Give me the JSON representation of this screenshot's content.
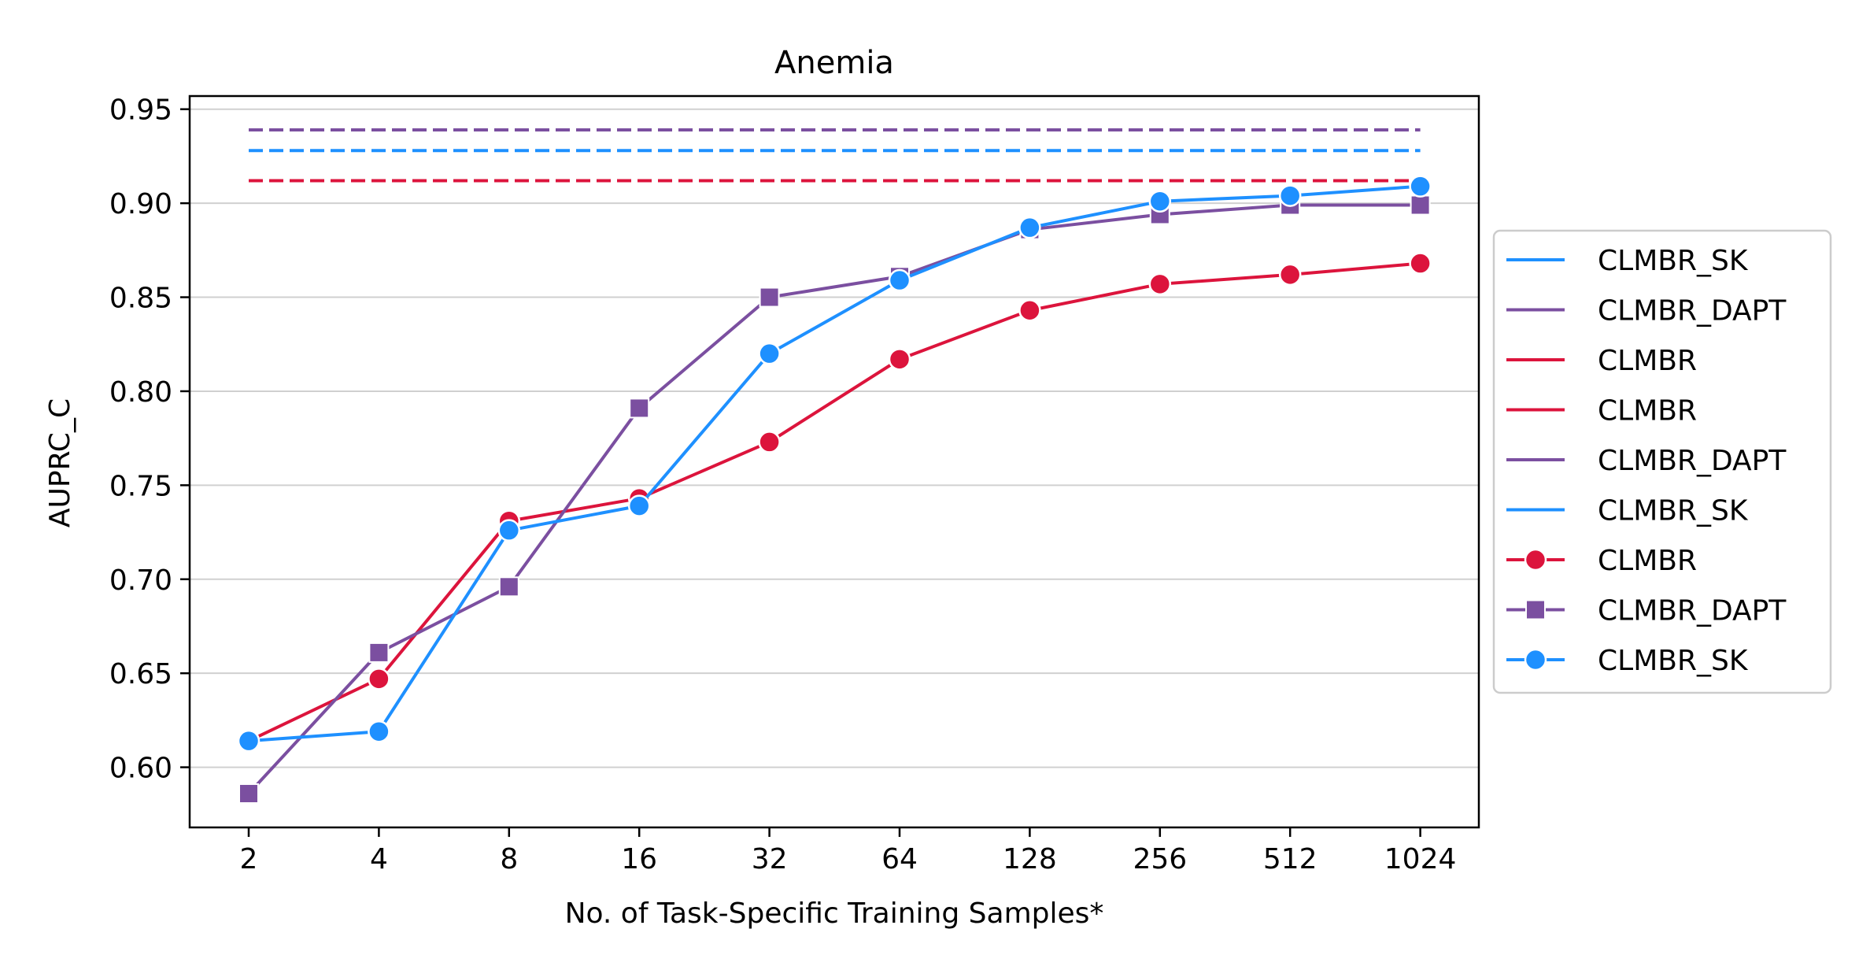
{
  "chart_data": {
    "type": "line",
    "title": "Anemia",
    "xlabel": "No. of Task-Specific Training Samples*",
    "ylabel": "AUPRC_C",
    "x": [
      "2",
      "4",
      "8",
      "16",
      "32",
      "64",
      "128",
      "256",
      "512",
      "1024"
    ],
    "ylim": [
      0.568,
      0.957
    ],
    "yticks": [
      "0.60",
      "0.65",
      "0.70",
      "0.75",
      "0.80",
      "0.85",
      "0.90",
      "0.95"
    ],
    "ytick_values": [
      0.6,
      0.65,
      0.7,
      0.75,
      0.8,
      0.85,
      0.9,
      0.95
    ],
    "grid": "horizontal",
    "legend_position": "outside-right",
    "reference_lines": [
      {
        "name": "CLMBR_SK",
        "value": 0.928,
        "color": "#1E90FF",
        "style": "dashed"
      },
      {
        "name": "CLMBR_DAPT",
        "value": 0.939,
        "color": "#7B4FA0",
        "style": "dashed"
      },
      {
        "name": "CLMBR",
        "value": 0.912,
        "color": "#DC143C",
        "style": "dashed"
      }
    ],
    "series": [
      {
        "name": "CLMBR",
        "color": "#DC143C",
        "marker": "circle",
        "values": [
          0.614,
          0.647,
          0.731,
          0.743,
          0.773,
          0.817,
          0.843,
          0.857,
          0.862,
          0.868
        ]
      },
      {
        "name": "CLMBR_DAPT",
        "color": "#7B4FA0",
        "marker": "square",
        "values": [
          0.586,
          0.661,
          0.696,
          0.791,
          0.85,
          0.861,
          0.886,
          0.894,
          0.899,
          0.899
        ]
      },
      {
        "name": "CLMBR_SK",
        "color": "#1E90FF",
        "marker": "circle",
        "values": [
          0.614,
          0.619,
          0.726,
          0.739,
          0.82,
          0.859,
          0.887,
          0.901,
          0.904,
          0.909
        ]
      }
    ],
    "legend": [
      {
        "label": "CLMBR_SK",
        "color": "#1E90FF",
        "marker": "none"
      },
      {
        "label": "CLMBR_DAPT",
        "color": "#7B4FA0",
        "marker": "none"
      },
      {
        "label": "CLMBR",
        "color": "#DC143C",
        "marker": "none"
      },
      {
        "label": "CLMBR",
        "color": "#DC143C",
        "marker": "none"
      },
      {
        "label": "CLMBR_DAPT",
        "color": "#7B4FA0",
        "marker": "none"
      },
      {
        "label": "CLMBR_SK",
        "color": "#1E90FF",
        "marker": "none"
      },
      {
        "label": "CLMBR",
        "color": "#DC143C",
        "marker": "circle"
      },
      {
        "label": "CLMBR_DAPT",
        "color": "#7B4FA0",
        "marker": "square"
      },
      {
        "label": "CLMBR_SK",
        "color": "#1E90FF",
        "marker": "circle"
      }
    ]
  }
}
